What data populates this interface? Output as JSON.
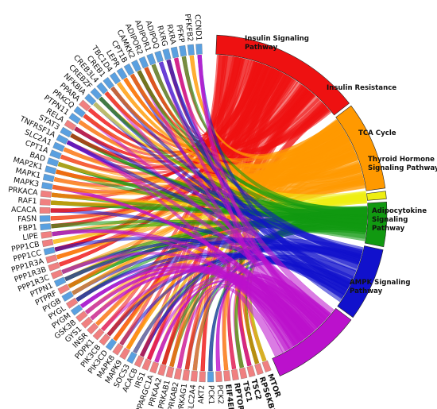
{
  "chart_data": {
    "type": "chord",
    "pathways": [
      {
        "name": "Insulin Signaling Pathway",
        "lines": [
          "Insulin Signaling",
          "Pathway"
        ],
        "color": "#ee1111"
      },
      {
        "name": "Insulin Resistance",
        "lines": [
          "Insulin Resistance"
        ],
        "color": "#ff9900"
      },
      {
        "name": "TCA Cycle",
        "lines": [
          "TCA Cycle"
        ],
        "color": "#eeee11"
      },
      {
        "name": "Thyroid Hormone Signaling Pathway",
        "lines": [
          "Thyroid Hormone",
          "Signaling Pathway"
        ],
        "color": "#119911"
      },
      {
        "name": "Adipocytokine Signaling Pathway",
        "lines": [
          "Adipocytokine",
          "Signaling",
          "Pathway"
        ],
        "color": "#1111cc"
      },
      {
        "name": "AMPK Signaling Pathway",
        "lines": [
          "AMPK Signaling",
          "Pathway"
        ],
        "color": "#bb11cc"
      }
    ],
    "genes_clockwise_from_bottom_right": [
      {
        "name": "MTOR",
        "color": "#f08080"
      },
      {
        "name": "RPS6KB1",
        "color": "#f08080"
      },
      {
        "name": "TSC2",
        "color": "#f08080"
      },
      {
        "name": "TSC1",
        "color": "#f08080"
      },
      {
        "name": "RPTOR",
        "color": "#f08080"
      },
      {
        "name": "EIF4EBP1",
        "color": "#f08080"
      },
      {
        "name": "PCK2",
        "color": "#f08080"
      },
      {
        "name": "PCK1",
        "color": "#5aa0e0"
      },
      {
        "name": "AKT2",
        "color": "#f08080"
      },
      {
        "name": "SLC2A4",
        "color": "#f08080"
      },
      {
        "name": "PRKAG1",
        "color": "#f08080"
      },
      {
        "name": "PRKAB2",
        "color": "#f08080"
      },
      {
        "name": "PRKAB1",
        "color": "#f08080"
      },
      {
        "name": "PRKAA2",
        "color": "#f08080"
      },
      {
        "name": "PPARGC1A",
        "color": "#f08080"
      },
      {
        "name": "IRS1",
        "color": "#f08080"
      },
      {
        "name": "ACACB",
        "color": "#f08080"
      },
      {
        "name": "SOCS3",
        "color": "#5aa0e0"
      },
      {
        "name": "MAPK9",
        "color": "#f08080"
      },
      {
        "name": "MAPK8",
        "color": "#f08080"
      },
      {
        "name": "PIK3CD",
        "color": "#5aa0e0"
      },
      {
        "name": "PIK3CB",
        "color": "#f08080"
      },
      {
        "name": "PDPK1",
        "color": "#f08080"
      },
      {
        "name": "INSR",
        "color": "#f08080"
      },
      {
        "name": "GYS1",
        "color": "#f08080"
      },
      {
        "name": "GSK3B",
        "color": "#f08080"
      },
      {
        "name": "PYGM",
        "color": "#5aa0e0"
      },
      {
        "name": "PYGL",
        "color": "#f08080"
      },
      {
        "name": "PYGB",
        "color": "#5aa0e0"
      },
      {
        "name": "PTPRF",
        "color": "#f08080"
      },
      {
        "name": "PTPN1",
        "color": "#5aa0e0"
      },
      {
        "name": "PPP1R3C",
        "color": "#f08080"
      },
      {
        "name": "PPP1R3B",
        "color": "#f08080"
      },
      {
        "name": "PPP1R3A",
        "color": "#f08080"
      },
      {
        "name": "PPP1CC",
        "color": "#5aa0e0"
      },
      {
        "name": "PPP1CB",
        "color": "#f08080"
      },
      {
        "name": "LIPE",
        "color": "#f08080"
      },
      {
        "name": "FBP1",
        "color": "#5aa0e0"
      },
      {
        "name": "FASN",
        "color": "#5aa0e0"
      },
      {
        "name": "ACACA",
        "color": "#f08080"
      },
      {
        "name": "RAF1",
        "color": "#f08080"
      },
      {
        "name": "PRKACA",
        "color": "#f08080"
      },
      {
        "name": "MAPK3",
        "color": "#5aa0e0"
      },
      {
        "name": "MAPK1",
        "color": "#5aa0e0"
      },
      {
        "name": "MAP2K1",
        "color": "#5aa0e0"
      },
      {
        "name": "BAD",
        "color": "#5aa0e0"
      },
      {
        "name": "CPT1A",
        "color": "#5aa0e0"
      },
      {
        "name": "SLC2A1",
        "color": "#5aa0e0"
      },
      {
        "name": "TNFRSF1A",
        "color": "#5aa0e0"
      },
      {
        "name": "STAT3",
        "color": "#5aa0e0"
      },
      {
        "name": "RELA",
        "color": "#f08080"
      },
      {
        "name": "PTPN11",
        "color": "#5aa0e0"
      },
      {
        "name": "PRKCQ",
        "color": "#5aa0e0"
      },
      {
        "name": "PPARA",
        "color": "#f08080"
      },
      {
        "name": "NFKBIA",
        "color": "#5aa0e0"
      },
      {
        "name": "CREBZF",
        "color": "#5aa0e0"
      },
      {
        "name": "CREB3L4",
        "color": "#5aa0e0"
      },
      {
        "name": "CREB1",
        "color": "#5aa0e0"
      },
      {
        "name": "TBC1D4",
        "color": "#5aa0e0"
      },
      {
        "name": "LEPR",
        "color": "#5aa0e0"
      },
      {
        "name": "CPT1B",
        "color": "#5aa0e0"
      },
      {
        "name": "CAMKK2",
        "color": "#5aa0e0"
      },
      {
        "name": "ADIPOR2",
        "color": "#5aa0e0"
      },
      {
        "name": "ADIPOR1",
        "color": "#5aa0e0"
      },
      {
        "name": "ADIPOQ",
        "color": "#5aa0e0"
      },
      {
        "name": "RXRG",
        "color": "#5aa0e0"
      },
      {
        "name": "RXRA",
        "color": "#5aa0e0"
      },
      {
        "name": "PFKP",
        "color": "#5aa0e0"
      },
      {
        "name": "PFKFB2",
        "color": "#5aa0e0"
      },
      {
        "name": "CCND1",
        "color": "#5aa0e0"
      }
    ]
  }
}
